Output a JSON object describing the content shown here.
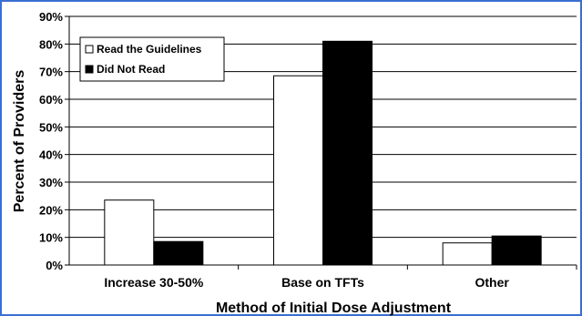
{
  "chart_data": {
    "type": "bar",
    "categories": [
      "Increase 30-50%",
      "Base on TFTs",
      "Other"
    ],
    "series": [
      {
        "name": "Read the Guidelines",
        "values": [
          23.5,
          68.5,
          8
        ],
        "color": "#ffffff"
      },
      {
        "name": "Did Not Read",
        "values": [
          8.5,
          81,
          10.5
        ],
        "color": "#000000"
      }
    ],
    "xlabel": "Method of Initial Dose Adjustment",
    "ylabel": "Percent of Providers",
    "ylim": [
      0,
      90
    ],
    "yticks": [
      "0%",
      "10%",
      "20%",
      "30%",
      "40%",
      "50%",
      "60%",
      "70%",
      "80%",
      "90%"
    ],
    "grid": true,
    "legend": "top-left",
    "frame_color": "#3a6fd0"
  }
}
